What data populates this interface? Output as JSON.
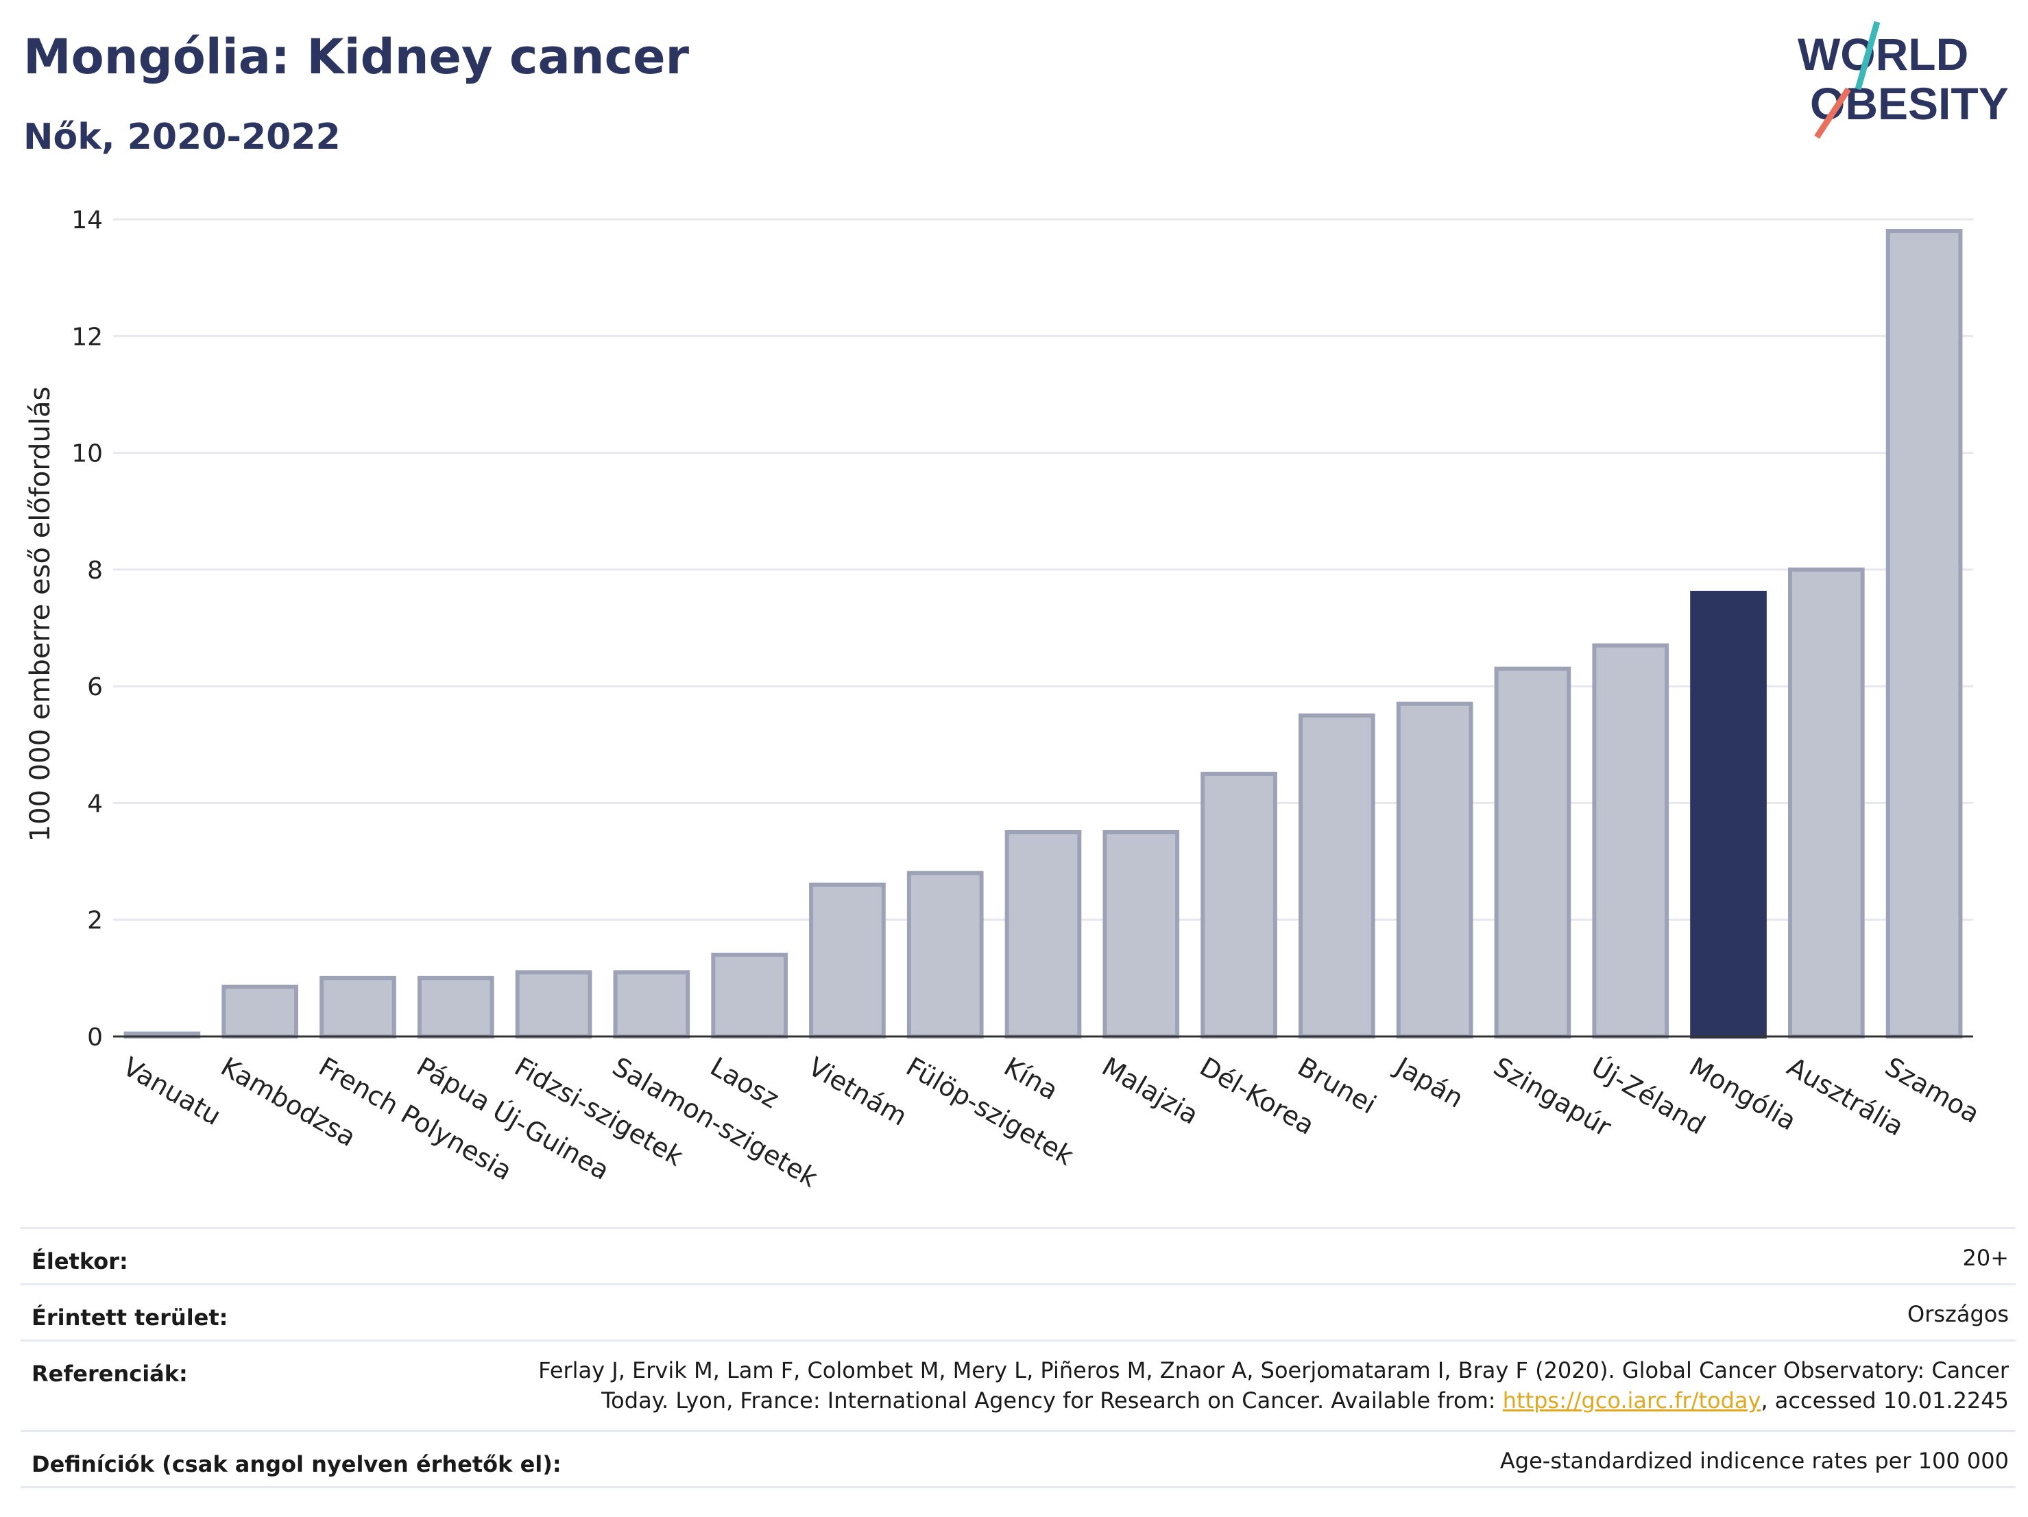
{
  "header": {
    "title": "Mongólia: Kidney cancer",
    "subtitle": "Nők, 2020-2022"
  },
  "logo": {
    "line1": "WORLD",
    "line2": "OBESITY",
    "colors": {
      "text": "#2b3560",
      "slash_teal": "#3cb8b8",
      "slash_coral": "#e8705e"
    }
  },
  "chart_data": {
    "type": "bar",
    "ylabel": "100 000 emberre eső előfordulás",
    "xlabel": "",
    "ylim": [
      0,
      14
    ],
    "yticks": [
      0,
      2,
      4,
      6,
      8,
      10,
      12,
      14
    ],
    "grid": true,
    "categories": [
      "Vanuatu",
      "Kambodzsa",
      "French Polynesia",
      "Pápua Új-Guinea",
      "Fidzsi-szigetek",
      "Salamon-szigetek",
      "Laosz",
      "Vietnám",
      "Fülöp-szigetek",
      "Kína",
      "Malajzia",
      "Dél-Korea",
      "Brunei",
      "Japán",
      "Szingapúr",
      "Új-Zéland",
      "Mongólia",
      "Ausztrália",
      "Szamoa"
    ],
    "values": [
      0.05,
      0.85,
      1.0,
      1.0,
      1.1,
      1.1,
      1.4,
      2.6,
      2.8,
      3.5,
      3.5,
      4.5,
      5.5,
      5.7,
      6.3,
      6.7,
      7.6,
      8.0,
      13.8
    ],
    "highlight": "Mongólia",
    "colors": {
      "bar": "#bfc3cf",
      "bar_edge": "#9da2b7",
      "highlight": "#2b3560",
      "grid": "#e6e8ee",
      "axis": "#333333"
    }
  },
  "info": {
    "rows": [
      {
        "key": "Életkor:",
        "value": "20+"
      },
      {
        "key": "Érintett terület:",
        "value": "Országos"
      },
      {
        "key": "Referenciák:",
        "value_line1": "Ferlay J, Ervik M, Lam F, Colombet M, Mery L, Piñeros M, Znaor A, Soerjomataram I, Bray F (2020). Global Cancer Observatory: Cancer",
        "value_line2_pre": "Today. Lyon, France: International Agency for Research on Cancer. Available from: ",
        "value_link": "https://gco.iarc.fr/today",
        "value_line2_post": ", accessed 10.01.2245"
      },
      {
        "key": "Definíciók (csak angol nyelven érhetők el):",
        "value": "Age-standardized indicence rates per 100 000"
      }
    ]
  }
}
